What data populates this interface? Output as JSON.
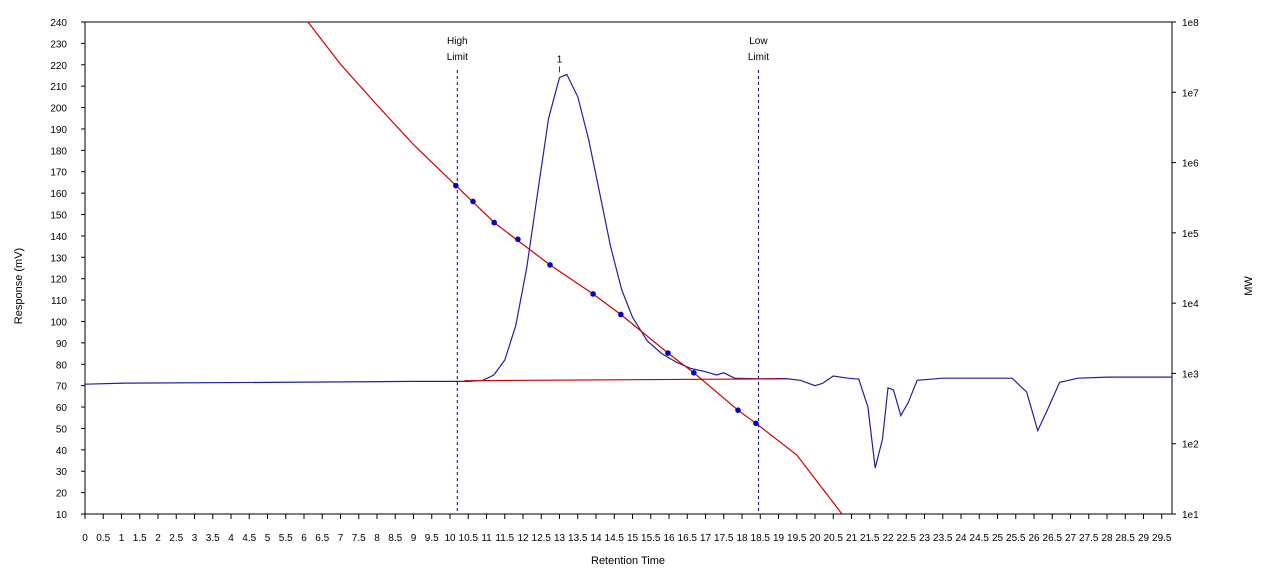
{
  "chart_data": {
    "type": "line",
    "x_label": "Retention Time",
    "y_label": "Response (mV)",
    "y2_label": "MW",
    "xlim": [
      0,
      29.78
    ],
    "xticks": [
      0,
      0.5,
      1,
      1.5,
      2,
      2.5,
      3,
      3.5,
      4,
      4.5,
      5,
      5.5,
      6,
      6.5,
      7,
      7.5,
      8,
      8.5,
      9,
      9.5,
      10,
      10.5,
      11,
      11.5,
      12,
      12.5,
      13,
      13.5,
      14,
      14.5,
      15,
      15.5,
      16,
      16.5,
      17,
      17.5,
      18,
      18.5,
      19,
      19.5,
      20,
      20.5,
      21,
      21.5,
      22,
      22.5,
      23,
      23.5,
      24,
      24.5,
      25,
      25.5,
      26,
      26.5,
      27,
      27.5,
      28,
      28.5,
      29,
      29.5
    ],
    "ylim": [
      10,
      240
    ],
    "yticks": [
      10,
      20,
      30,
      40,
      50,
      60,
      70,
      80,
      90,
      100,
      110,
      120,
      130,
      140,
      150,
      160,
      170,
      180,
      190,
      200,
      210,
      220,
      230,
      240
    ],
    "y2lim": [
      10,
      100000000
    ],
    "y2scale": "log",
    "y2ticks": [
      {
        "value": 10,
        "label": "1e1"
      },
      {
        "value": 100,
        "label": "1e2"
      },
      {
        "value": 1000,
        "label": "1e3"
      },
      {
        "value": 10000,
        "label": "1e4"
      },
      {
        "value": 100000,
        "label": "1e5"
      },
      {
        "value": 1000000,
        "label": "1e6"
      },
      {
        "value": 10000000,
        "label": "1e7"
      },
      {
        "value": 100000000,
        "label": "1e8"
      }
    ],
    "series": [
      {
        "color": "#2020a0",
        "style": "line",
        "x": [
          0,
          1.1,
          5,
          9,
          10.5,
          10.9,
          11.2,
          11.5,
          11.8,
          12.1,
          12.4,
          12.7,
          13.0,
          13.2,
          13.5,
          13.8,
          14.1,
          14.4,
          14.7,
          15.0,
          15.4,
          15.8,
          16.2,
          16.6,
          17.0,
          17.3,
          17.5,
          17.8,
          18.5,
          19.2,
          19.6,
          20.0,
          20.2,
          20.5,
          20.9,
          21.2,
          21.45,
          21.65,
          21.85,
          22.0,
          22.15,
          22.35,
          22.55,
          22.8,
          23.5,
          25.4,
          25.8,
          26.1,
          26.35,
          26.7,
          27.2,
          28,
          29.78
        ],
        "values": [
          70.7,
          71.2,
          71.5,
          72,
          72,
          72.5,
          75,
          82,
          98,
          125,
          160,
          195,
          214,
          215.5,
          205,
          185,
          160,
          135,
          115,
          102,
          91,
          85,
          81,
          78,
          76.5,
          75,
          76,
          73.5,
          73.2,
          73.3,
          72.5,
          70,
          71,
          74.5,
          73.5,
          73,
          60,
          31.5,
          45,
          69,
          68,
          56,
          62,
          72.5,
          73.5,
          73.5,
          67,
          49,
          58,
          71.5,
          73.5,
          74,
          74
        ]
      },
      {
        "color": "#cc0000",
        "style": "line",
        "axis": "y2",
        "x": [
          6.11,
          7,
          8,
          9,
          10.16,
          11.21,
          12.74,
          13.92,
          14.68,
          15.97,
          16.68,
          17.89,
          18.38,
          19.5,
          20.74
        ],
        "values": [
          100000000,
          25000000,
          6600000,
          1800000,
          470000,
          140000,
          35000,
          13500,
          6900,
          1950,
          1020,
          300,
          195,
          69,
          10
        ]
      },
      {
        "color": "#0000cc",
        "style": "points",
        "axis": "y2",
        "x": [
          10.16,
          10.63,
          11.21,
          11.86,
          12.74,
          13.92,
          14.68,
          15.97,
          16.68,
          17.89,
          18.38
        ],
        "values": [
          470000,
          280000,
          140000,
          81000,
          35000,
          13500,
          6900,
          1950,
          1020,
          300,
          195
        ]
      },
      {
        "color": "#cc0000",
        "style": "line",
        "x": [
          10.4,
          19.1
        ],
        "values": [
          72.3,
          73.2
        ]
      }
    ],
    "limits": [
      {
        "x": 10.2,
        "label": [
          "High",
          "Limit"
        ]
      },
      {
        "x": 18.45,
        "label": [
          "Low",
          "Limit"
        ]
      }
    ],
    "peaks": [
      {
        "x": 13.0,
        "y": 215.5,
        "label": "1"
      }
    ]
  }
}
